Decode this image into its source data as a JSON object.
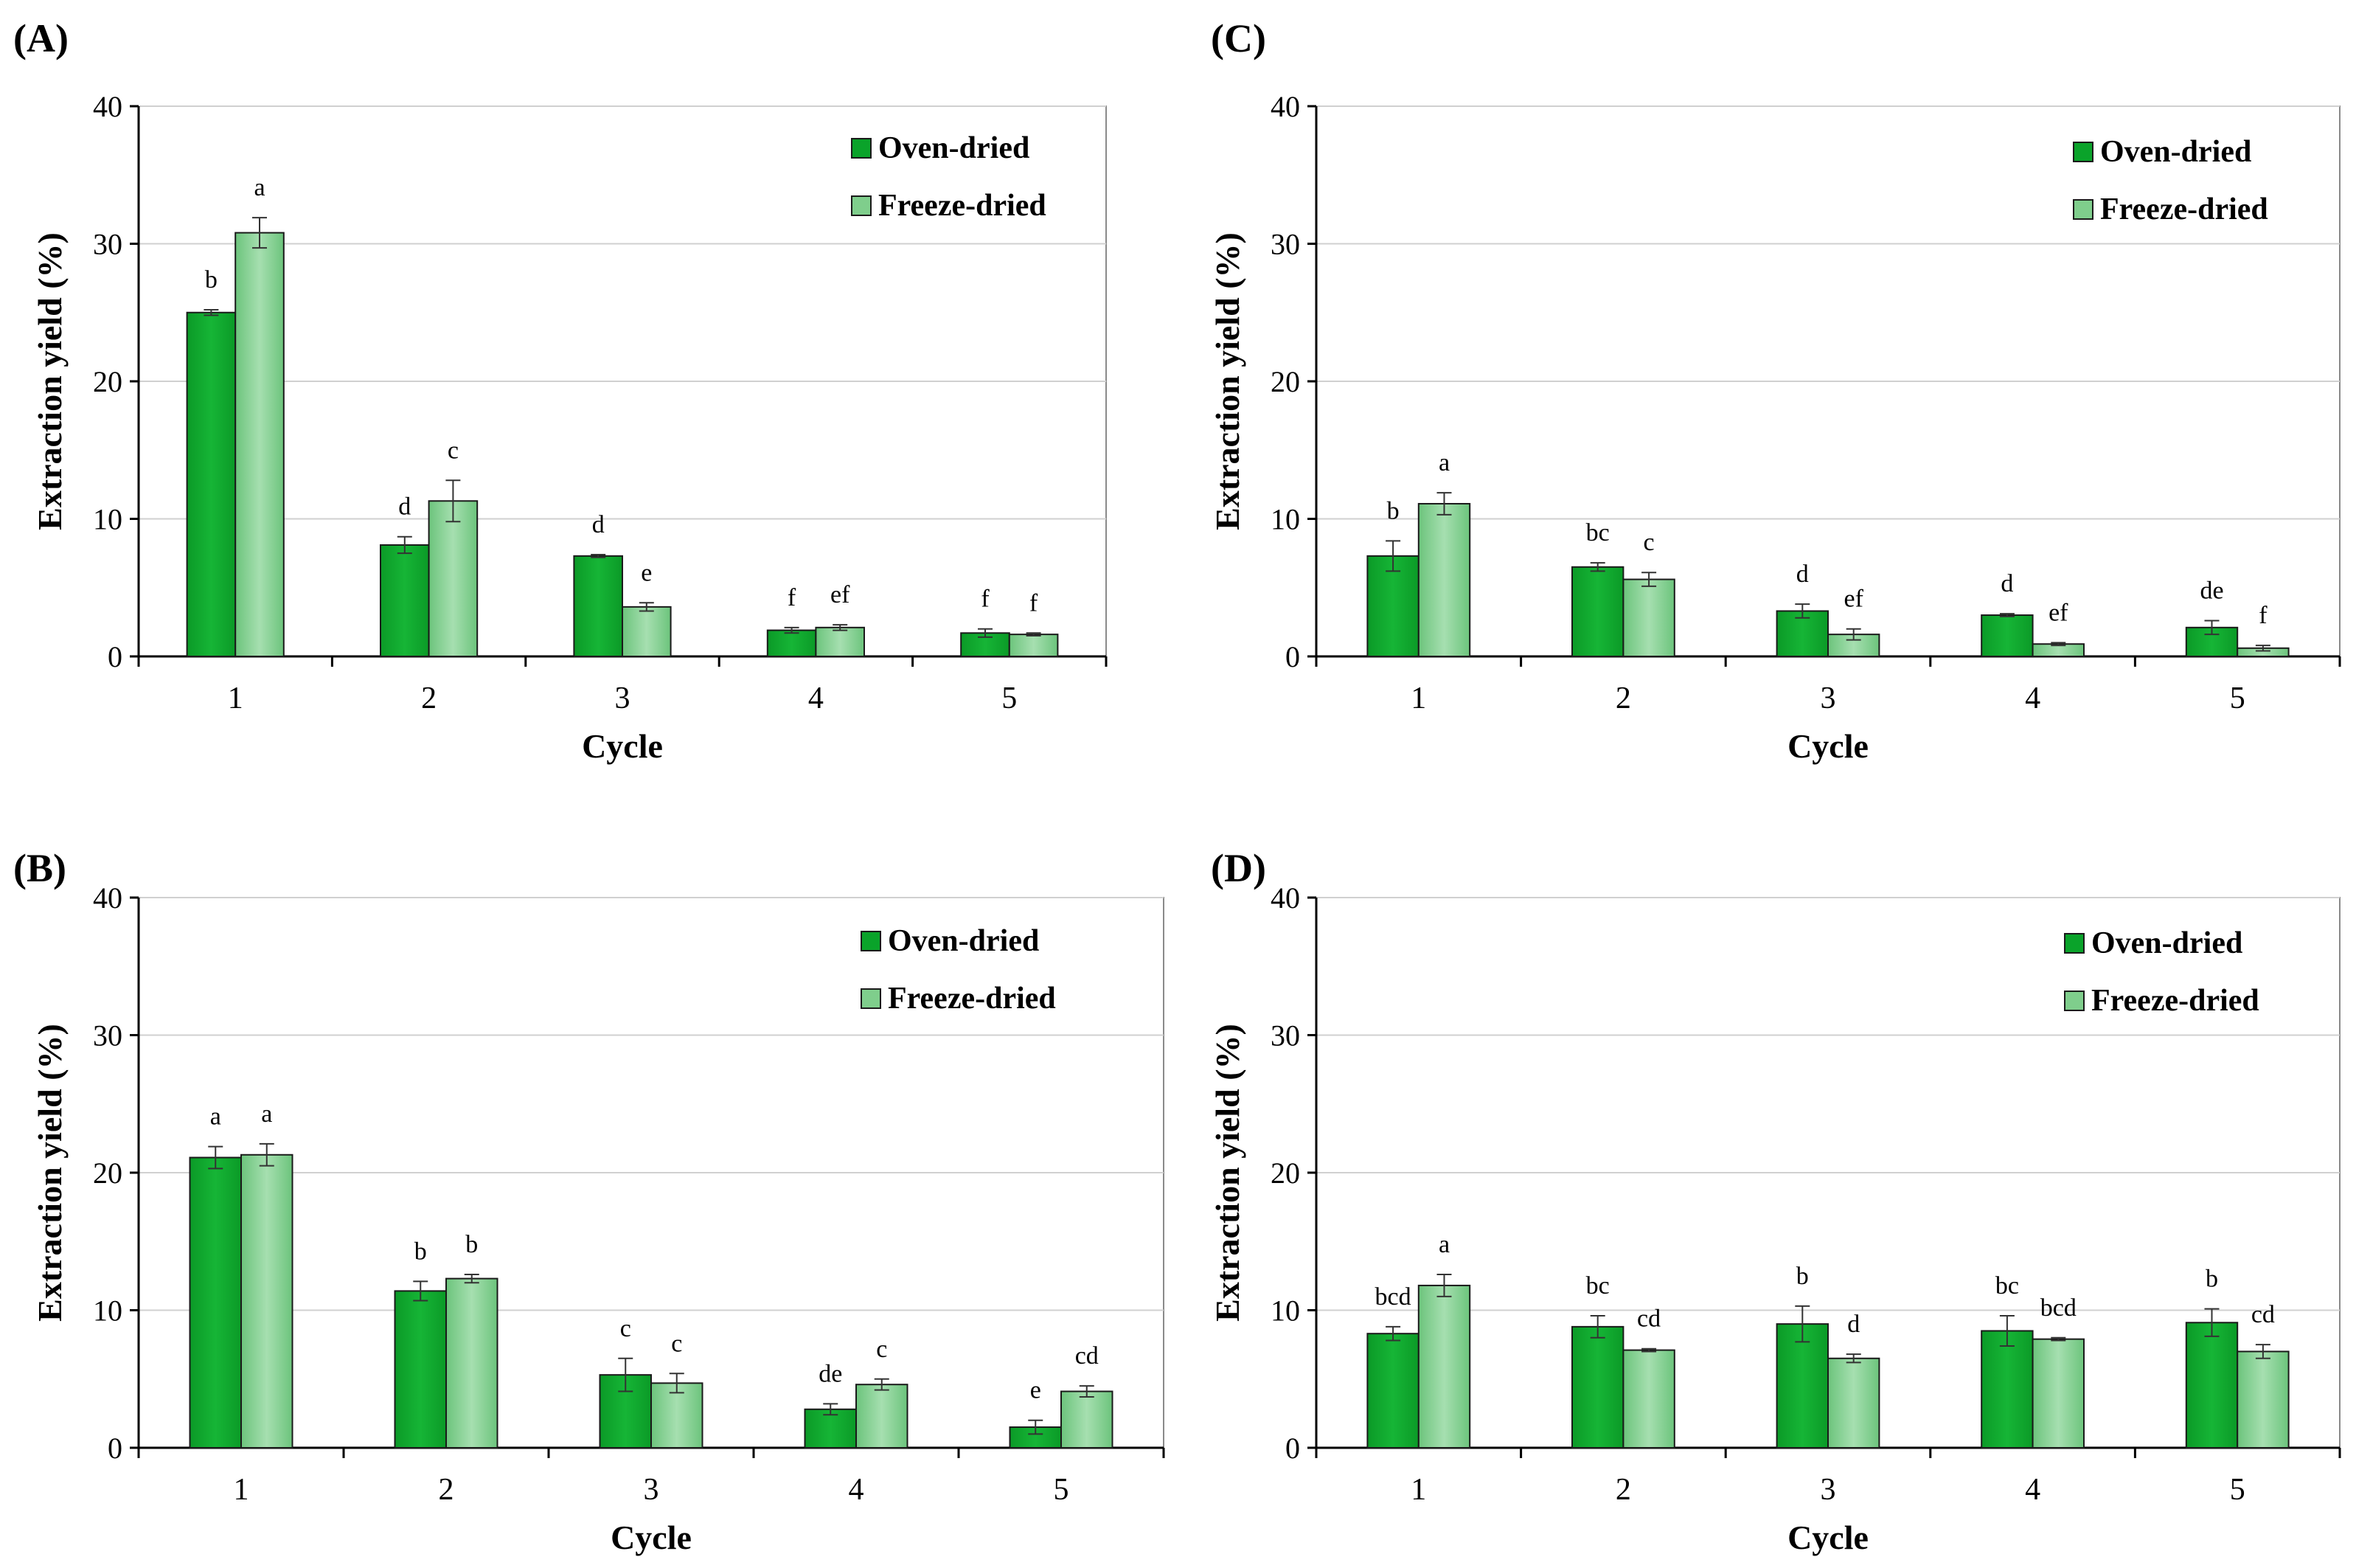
{
  "figure": {
    "colors": {
      "oven": "#0aa32a",
      "freeze": "#7fce8c",
      "grid": "#d0d0d0",
      "axis": "#000000"
    }
  },
  "chart_data": [
    {
      "panel": "(A)",
      "type": "bar",
      "xlabel": "Cycle",
      "ylabel": "Extraction yield (%)",
      "ylim": [
        0,
        40
      ],
      "yticks": [
        0,
        10,
        20,
        30,
        40
      ],
      "categories": [
        "1",
        "2",
        "3",
        "4",
        "5"
      ],
      "legend_position": "top-right",
      "series": [
        {
          "name": "Oven-dried",
          "values": [
            25.0,
            8.1,
            7.3,
            1.9,
            1.7
          ],
          "errors": [
            0.2,
            0.6,
            0.1,
            0.2,
            0.3
          ],
          "letters": [
            "b",
            "d",
            "d",
            "f",
            "f"
          ]
        },
        {
          "name": "Freeze-dried",
          "values": [
            30.8,
            11.3,
            3.6,
            2.1,
            1.6
          ],
          "errors": [
            1.1,
            1.5,
            0.3,
            0.2,
            0.1
          ],
          "letters": [
            "a",
            "c",
            "e",
            "ef",
            "f"
          ]
        }
      ]
    },
    {
      "panel": "(B)",
      "type": "bar",
      "xlabel": "Cycle",
      "ylabel": "Extraction yield (%)",
      "ylim": [
        0,
        40
      ],
      "yticks": [
        0,
        10,
        20,
        30,
        40
      ],
      "categories": [
        "1",
        "2",
        "3",
        "4",
        "5"
      ],
      "legend_position": "top-right",
      "series": [
        {
          "name": "Oven-dried",
          "values": [
            21.1,
            11.4,
            5.3,
            2.8,
            1.5
          ],
          "errors": [
            0.8,
            0.7,
            1.2,
            0.4,
            0.5
          ],
          "letters": [
            "a",
            "b",
            "c",
            "de",
            "e"
          ]
        },
        {
          "name": "Freeze-dried",
          "values": [
            21.3,
            12.3,
            4.7,
            4.6,
            4.1
          ],
          "errors": [
            0.8,
            0.3,
            0.7,
            0.4,
            0.4
          ],
          "letters": [
            "a",
            "b",
            "c",
            "c",
            "cd"
          ]
        }
      ]
    },
    {
      "panel": "(C)",
      "type": "bar",
      "xlabel": "Cycle",
      "ylabel": "Extraction yield (%)",
      "ylim": [
        0,
        40
      ],
      "yticks": [
        0,
        10,
        20,
        30,
        40
      ],
      "categories": [
        "1",
        "2",
        "3",
        "4",
        "5"
      ],
      "legend_position": "top-right",
      "series": [
        {
          "name": "Oven-dried",
          "values": [
            7.3,
            6.5,
            3.3,
            3.0,
            2.1
          ],
          "errors": [
            1.1,
            0.3,
            0.5,
            0.1,
            0.5
          ],
          "letters": [
            "b",
            "bc",
            "d",
            "d",
            "de"
          ]
        },
        {
          "name": "Freeze-dried",
          "values": [
            11.1,
            5.6,
            1.6,
            0.9,
            0.6
          ],
          "errors": [
            0.8,
            0.5,
            0.4,
            0.1,
            0.2
          ],
          "letters": [
            "a",
            "c",
            "ef",
            "ef",
            "f"
          ]
        }
      ]
    },
    {
      "panel": "(D)",
      "type": "bar",
      "xlabel": "Cycle",
      "ylabel": "Extraction yield (%)",
      "ylim": [
        0,
        40
      ],
      "yticks": [
        0,
        10,
        20,
        30,
        40
      ],
      "categories": [
        "1",
        "2",
        "3",
        "4",
        "5"
      ],
      "legend_position": "top-right",
      "series": [
        {
          "name": "Oven-dried",
          "values": [
            8.3,
            8.8,
            9.0,
            8.5,
            9.1
          ],
          "errors": [
            0.5,
            0.8,
            1.3,
            1.1,
            1.0
          ],
          "letters": [
            "bcd",
            "bc",
            "b",
            "bc",
            "b"
          ]
        },
        {
          "name": "Freeze-dried",
          "values": [
            11.8,
            7.1,
            6.5,
            7.9,
            7.0
          ],
          "errors": [
            0.8,
            0.1,
            0.3,
            0.1,
            0.5
          ],
          "letters": [
            "a",
            "cd",
            "d",
            "bcd",
            "cd"
          ]
        }
      ]
    }
  ]
}
